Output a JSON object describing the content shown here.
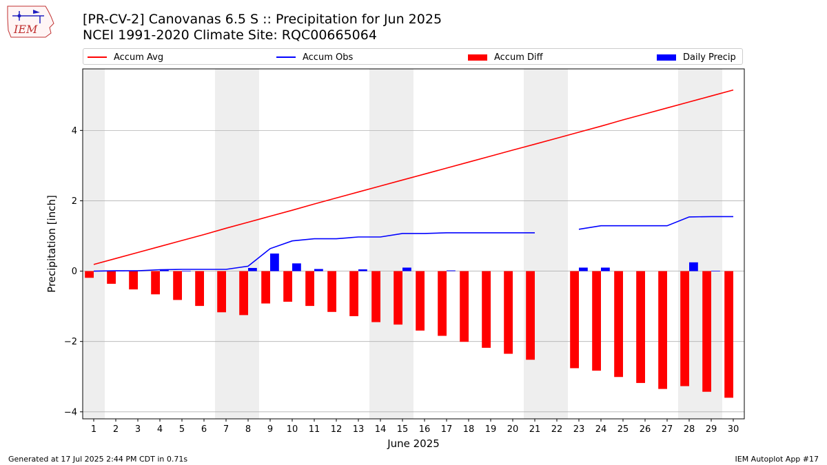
{
  "header": {
    "title_line1": "[PR-CV-2] Canovanas 6.5 S :: Precipitation for Jun 2025",
    "title_line2": "NCEI 1991-2020 Climate Site: RQC00665064",
    "logo_text": "IEM"
  },
  "footer": {
    "left": "Generated at 17 Jul 2025 2:44 PM CDT in 0.71s",
    "right": "IEM Autoplot App #17"
  },
  "colors": {
    "accum_avg": "#ff0000",
    "accum_obs": "#0000ff",
    "accum_diff": "#ff0000",
    "daily_precip": "#0000ff",
    "weekend_shade": "#eeeeee",
    "grid": "#b0b0b0"
  },
  "chart_data": {
    "type": "bar",
    "xlabel": "June 2025",
    "ylabel": "Precipitation [inch]",
    "ylim": [
      -4.2,
      5.75
    ],
    "yticks": [
      -4,
      -2,
      0,
      2,
      4
    ],
    "ytick_labels": [
      "−4",
      "−2",
      "0",
      "2",
      "4"
    ],
    "legend_position": "top",
    "grid": "horizontal",
    "days": [
      1,
      2,
      3,
      4,
      5,
      6,
      7,
      8,
      9,
      10,
      11,
      12,
      13,
      14,
      15,
      16,
      17,
      18,
      19,
      20,
      21,
      22,
      23,
      24,
      25,
      26,
      27,
      28,
      29,
      30
    ],
    "shaded_days": [
      [
        1,
        1
      ],
      [
        7,
        8
      ],
      [
        14,
        15
      ],
      [
        21,
        22
      ],
      [
        28,
        29
      ]
    ],
    "series": [
      {
        "name": "Accum Avg",
        "kind": "line",
        "values": [
          0.19,
          0.36,
          0.53,
          0.7,
          0.87,
          1.04,
          1.22,
          1.39,
          1.56,
          1.73,
          1.91,
          2.08,
          2.25,
          2.42,
          2.59,
          2.76,
          2.93,
          3.1,
          3.27,
          3.44,
          3.61,
          3.78,
          3.95,
          4.12,
          4.3,
          4.47,
          4.64,
          4.81,
          4.98,
          5.15
        ]
      },
      {
        "name": "Accum Obs",
        "kind": "line",
        "values": [
          0.0,
          0.01,
          0.01,
          0.04,
          0.05,
          0.05,
          0.05,
          0.14,
          0.64,
          0.86,
          0.92,
          0.92,
          0.97,
          0.97,
          1.07,
          1.07,
          1.09,
          1.09,
          1.09,
          1.09,
          1.09,
          null,
          1.19,
          1.29,
          1.29,
          1.29,
          1.29,
          1.54,
          1.55,
          1.55
        ]
      },
      {
        "name": "Accum Diff",
        "kind": "bar",
        "values": [
          -0.19,
          -0.36,
          -0.52,
          -0.66,
          -0.82,
          -0.99,
          -1.17,
          -1.25,
          -0.92,
          -0.87,
          -0.99,
          -1.16,
          -1.28,
          -1.45,
          -1.52,
          -1.69,
          -1.84,
          -2.01,
          -2.18,
          -2.35,
          -2.52,
          null,
          -2.76,
          -2.83,
          -3.01,
          -3.18,
          -3.35,
          -3.27,
          -3.43,
          -3.6
        ]
      },
      {
        "name": "Daily Precip",
        "kind": "bar",
        "values": [
          0.0,
          0.01,
          0.0,
          0.03,
          0.01,
          0.0,
          0.0,
          0.09,
          0.5,
          0.22,
          0.06,
          0.0,
          0.05,
          0.0,
          0.1,
          0.0,
          0.02,
          0.0,
          0.0,
          0.0,
          0.0,
          null,
          0.1,
          0.1,
          0.0,
          0.0,
          0.0,
          0.25,
          0.01,
          0.0
        ]
      }
    ]
  }
}
